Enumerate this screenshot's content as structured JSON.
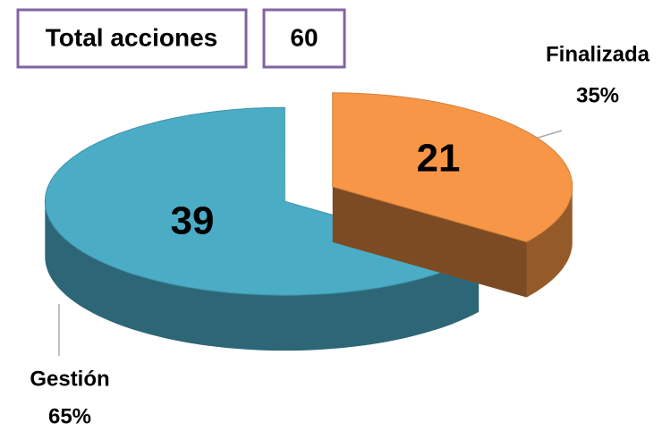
{
  "chart_data": {
    "type": "pie3d",
    "total_label": "Total acciones",
    "total": 60,
    "categories": [
      "Finalizada",
      "Gestión"
    ],
    "values": [
      21,
      39
    ],
    "percent_labels": [
      "35%",
      "65%"
    ],
    "colors": [
      "#f79646",
      "#4bacc6"
    ],
    "box_color": "#8064a2"
  }
}
